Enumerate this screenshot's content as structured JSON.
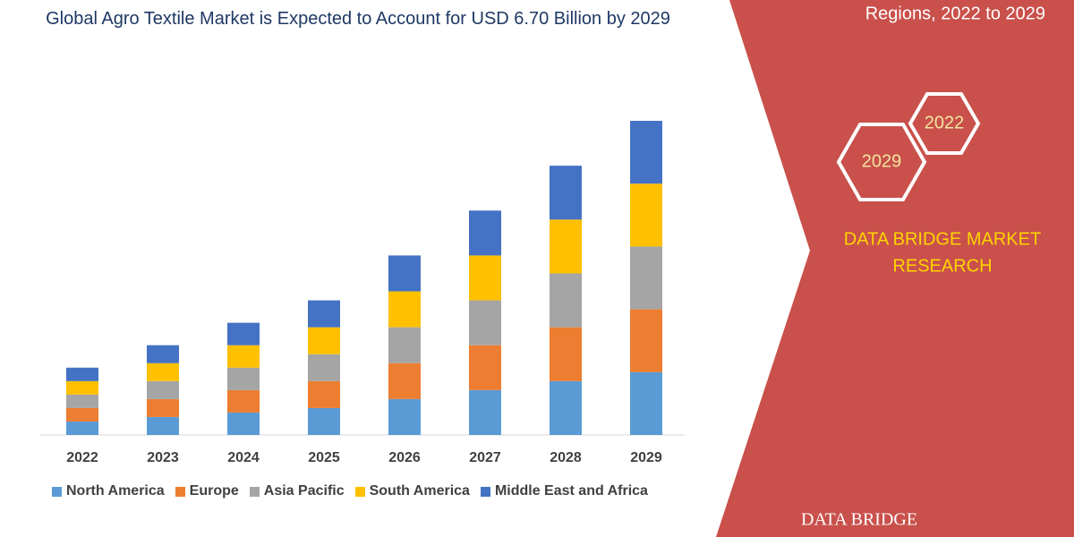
{
  "chart_data": {
    "type": "bar",
    "stacked": true,
    "title": "Global Agro Textile Market is Expected to Account for USD 6.70 Billion by 2029",
    "categories": [
      "2022",
      "2023",
      "2024",
      "2025",
      "2026",
      "2027",
      "2028",
      "2029"
    ],
    "series": [
      {
        "name": "North America",
        "color": "#5b9bd5",
        "values": [
          15,
          20,
          25,
          30,
          40,
          50,
          60,
          70
        ]
      },
      {
        "name": "Europe",
        "color": "#ed7d31",
        "values": [
          15,
          20,
          25,
          30,
          40,
          50,
          60,
          70
        ]
      },
      {
        "name": "Asia Pacific",
        "color": "#a5a5a5",
        "values": [
          15,
          20,
          25,
          30,
          40,
          50,
          60,
          70
        ]
      },
      {
        "name": "South America",
        "color": "#ffc000",
        "values": [
          15,
          20,
          25,
          30,
          40,
          50,
          60,
          70
        ]
      },
      {
        "name": "Middle East and Africa",
        "color": "#4472c4",
        "values": [
          15,
          20,
          25,
          30,
          40,
          50,
          60,
          70
        ]
      }
    ]
  },
  "side_panel": {
    "subtitle": "Regions, 2022 to 2029",
    "badges": [
      "2022",
      "2029"
    ],
    "brand_lines": [
      "DATA BRIDGE MARKET",
      "RESEARCH"
    ],
    "logo": "DATA BRIDGE"
  }
}
